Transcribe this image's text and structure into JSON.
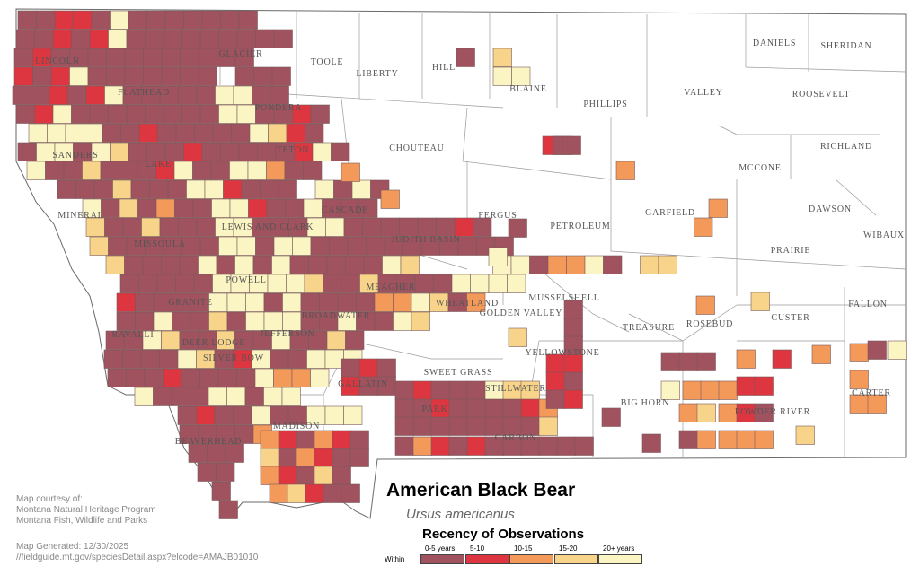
{
  "title": "American Black Bear",
  "scientific_name": "Ursus americanus",
  "legend": {
    "title": "Recency of Observations",
    "within_label": "Within",
    "categories": [
      {
        "label": "0-5 years",
        "color": "#a0525f"
      },
      {
        "label": "5-10",
        "color": "#dd3640"
      },
      {
        "label": "10-15",
        "color": "#f39a5a"
      },
      {
        "label": "15-20",
        "color": "#f8d48a"
      },
      {
        "label": "20+ years",
        "color": "#fbf5c3"
      }
    ]
  },
  "credits": {
    "line1": "Map courtesy of:",
    "line2": "Montana Natural Heritage Program",
    "line3": "Montana Fish, Wildlife and Parks",
    "generated": "Map Generated: 12/30/2025",
    "url": "//fieldguide.mt.gov/speciesDetail.aspx?elcode=AMAJB01010"
  },
  "counties": [
    "GLACIER",
    "TOOLE",
    "LIBERTY",
    "HILL",
    "BLAINE",
    "PHILLIPS",
    "VALLEY",
    "DANIELS",
    "SHERIDAN",
    "ROOSEVELT",
    "LINCOLN",
    "FLATHEAD",
    "PONDERA",
    "TETON",
    "CHOUTEAU",
    "RICHLAND",
    "MCCONE",
    "SANDERS",
    "LAKE",
    "CASCADE",
    "FERGUS",
    "PETROLEUM",
    "GARFIELD",
    "DAWSON",
    "MINERAL",
    "MISSOULA",
    "LEWIS AND CLARK",
    "JUDITH BASIN",
    "PRAIRIE",
    "WIBAUX",
    "POWELL",
    "MEAGHER",
    "WHEATLAND",
    "MUSSELSHELL",
    "FALLON",
    "GRANITE",
    "BROADWATER",
    "GOLDEN VALLEY",
    "ROSEBUD",
    "CUSTER",
    "RAVALLI",
    "DEER LODGE",
    "JEFFERSON",
    "TREASURE",
    "SILVER BOW",
    "YELLOWSTONE",
    "SWEET GRASS",
    "GALLATIN",
    "STILLWATER",
    "CARTER",
    "PARK",
    "BIG HORN",
    "POWDER RIVER",
    "MADISON",
    "CARBON",
    "BEAVERHEAD"
  ]
}
